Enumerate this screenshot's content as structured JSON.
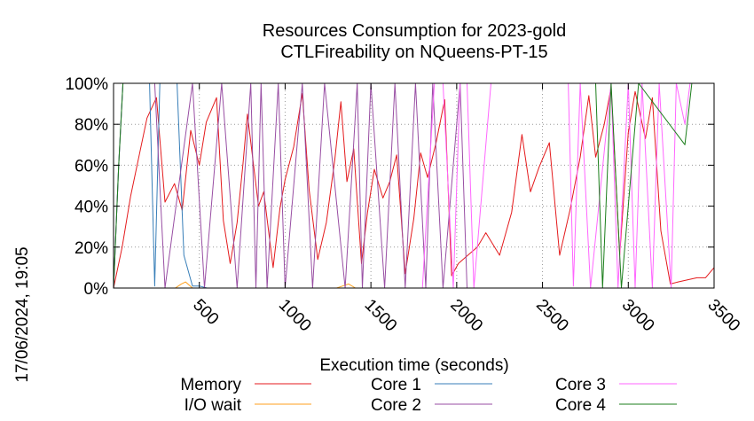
{
  "chart_data": {
    "type": "line",
    "title": [
      "Resources Consumption for 2023-gold",
      "CTLFireability on NQueens-PT-15"
    ],
    "xlabel": "Execution time (seconds)",
    "ylabel": "",
    "xlim": [
      0,
      3500
    ],
    "ylim": [
      0,
      100
    ],
    "x_ticks": [
      "500",
      "1000",
      "1500",
      "2000",
      "2500",
      "3000",
      "3500"
    ],
    "y_ticks": [
      "0%",
      "20%",
      "40%",
      "60%",
      "80%",
      "100%"
    ],
    "grid": true,
    "legend_position": "bottom",
    "side_label": "17/06/2024, 19:05",
    "series": [
      {
        "name": "Memory",
        "color": "#e41a1c",
        "x": [
          0,
          50,
          100,
          150,
          195,
          250,
          300,
          355,
          400,
          450,
          500,
          540,
          600,
          640,
          680,
          720,
          755,
          780,
          845,
          875,
          930,
          970,
          1000,
          1050,
          1100,
          1140,
          1190,
          1240,
          1290,
          1325,
          1360,
          1400,
          1445,
          1480,
          1520,
          1570,
          1610,
          1650,
          1700,
          1750,
          1790,
          1830,
          1880,
          1930,
          1970,
          2010,
          2065,
          2120,
          2170,
          2250,
          2320,
          2380,
          2430,
          2480,
          2540,
          2600,
          2660,
          2720,
          2770,
          2810,
          2860,
          2900,
          2950,
          3000,
          3040,
          3100,
          3140,
          3190,
          3245,
          3290,
          3345,
          3400,
          3450,
          3500
        ],
        "values": [
          0,
          20,
          45,
          65,
          83,
          93,
          42,
          51,
          38,
          77,
          60,
          81,
          93,
          33,
          12,
          32,
          61,
          85,
          40,
          47,
          10,
          39,
          53,
          69,
          95,
          48,
          14,
          32,
          63,
          91,
          52,
          68,
          12,
          37,
          58,
          44,
          52,
          65,
          7,
          34,
          66,
          54,
          71,
          92,
          6,
          12,
          16,
          20,
          27,
          16,
          37,
          75,
          47,
          59,
          71,
          16,
          38,
          64,
          94,
          64,
          80,
          98,
          16,
          76,
          96,
          73,
          93,
          28,
          2,
          3,
          4,
          5,
          5,
          10
        ]
      },
      {
        "name": "I/O wait",
        "color": "#ff9f1c",
        "x": [
          0,
          360,
          395,
          420,
          460,
          1300,
          1335,
          1370,
          1410,
          3500
        ],
        "values": [
          0,
          0,
          2,
          3,
          0,
          0,
          1,
          2,
          0,
          0
        ]
      },
      {
        "name": "Core 1",
        "color": "#377eb8",
        "x": [
          0,
          30,
          55,
          190,
          210,
          240,
          270,
          370,
          410,
          460,
          500,
          545,
          3500
        ],
        "values": [
          0,
          60,
          100,
          100,
          100,
          1,
          100,
          100,
          16,
          1,
          1,
          0,
          0
        ]
      },
      {
        "name": "Core 2",
        "color": "#984ea3",
        "x": [
          0,
          30,
          55,
          240,
          300,
          460,
          530,
          630,
          720,
          800,
          830,
          860,
          895,
          960,
          1000,
          1100,
          1160,
          1230,
          1350,
          1420,
          1450,
          1500,
          1580,
          1640,
          1700,
          1760,
          1820,
          1860,
          1920,
          2020,
          2060,
          3500
        ],
        "values": [
          0,
          60,
          100,
          100,
          0,
          100,
          0,
          100,
          0,
          100,
          0,
          100,
          0,
          100,
          0,
          100,
          0,
          100,
          0,
          100,
          0,
          100,
          0,
          100,
          0,
          100,
          0,
          100,
          0,
          100,
          0,
          0
        ]
      },
      {
        "name": "Core 3",
        "color": "#ff66ff",
        "x": [
          1800,
          1870,
          1920,
          1980,
          2020,
          2060,
          2100,
          2200,
          2650,
          2680,
          2720,
          2780,
          2900,
          2940,
          3000,
          3040,
          3080,
          3140,
          3180,
          3250,
          3280,
          3330,
          3360,
          3400,
          3500
        ],
        "values": [
          0,
          100,
          100,
          0,
          100,
          100,
          0,
          100,
          100,
          1,
          100,
          0,
          100,
          0,
          100,
          0,
          100,
          0,
          100,
          0,
          100,
          80,
          100,
          100,
          100
        ]
      },
      {
        "name": "Core 4",
        "color": "#1b7e1b",
        "x": [
          0,
          30,
          55,
          2810,
          2850,
          2900,
          2960,
          3060,
          3330,
          3370,
          3500
        ],
        "values": [
          0,
          60,
          100,
          100,
          0,
          100,
          0,
          100,
          70,
          100,
          100
        ]
      }
    ]
  }
}
